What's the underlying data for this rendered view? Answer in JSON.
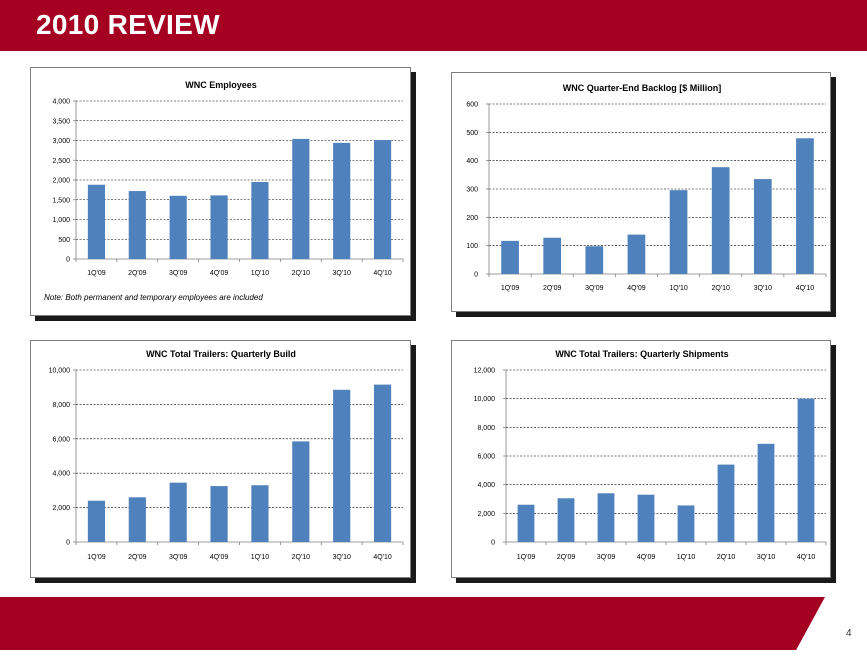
{
  "header": {
    "title": "2010 REVIEW",
    "color": "#a50021"
  },
  "page_number": "4",
  "bar_color": "#4f81bd",
  "chart_data": [
    {
      "type": "bar",
      "title": "WNC Employees",
      "categories": [
        "1Q'09",
        "2Q'09",
        "3Q'09",
        "4Q'09",
        "1Q'10",
        "2Q'10",
        "3Q'10",
        "4Q'10"
      ],
      "values": [
        1880,
        1720,
        1600,
        1610,
        1950,
        3040,
        2940,
        3010
      ],
      "ylim": [
        0,
        4000
      ],
      "yticks": [
        "0",
        "500",
        "1,000",
        "1,500",
        "2,000",
        "2,500",
        "3,000",
        "3,500",
        "4,000"
      ],
      "grid": true,
      "note": "Note:  Both permanent and temporary employees are included"
    },
    {
      "type": "bar",
      "title": "WNC Quarter-End Backlog [$ Million]",
      "categories": [
        "1Q'09",
        "2Q'09",
        "3Q'09",
        "4Q'09",
        "1Q'10",
        "2Q'10",
        "3Q'10",
        "4Q'10"
      ],
      "values": [
        117,
        128,
        98,
        139,
        296,
        377,
        335,
        479
      ],
      "ylim": [
        0,
        600
      ],
      "yticks": [
        "0",
        "100",
        "200",
        "300",
        "400",
        "500",
        "600"
      ],
      "grid": true
    },
    {
      "type": "bar",
      "title": "WNC Total Trailers: Quarterly Build",
      "categories": [
        "1Q'09",
        "2Q'09",
        "3Q'09",
        "4Q'09",
        "1Q'10",
        "2Q'10",
        "3Q'10",
        "4Q'10"
      ],
      "values": [
        2400,
        2600,
        3450,
        3250,
        3300,
        5850,
        8850,
        9150
      ],
      "ylim": [
        0,
        10000
      ],
      "yticks": [
        "0",
        "2,000",
        "4,000",
        "6,000",
        "8,000",
        "10,000"
      ],
      "grid": true
    },
    {
      "type": "bar",
      "title": "WNC Total Trailers: Quarterly Shipments",
      "categories": [
        "1Q'09",
        "2Q'09",
        "3Q'09",
        "4Q'09",
        "1Q'10",
        "2Q'10",
        "3Q'10",
        "4Q'10"
      ],
      "values": [
        2600,
        3050,
        3400,
        3300,
        2550,
        5400,
        6850,
        10000
      ],
      "ylim": [
        0,
        12000
      ],
      "yticks": [
        "0",
        "2,000",
        "4,000",
        "6,000",
        "8,000",
        "10,000",
        "12,000"
      ],
      "grid": true
    }
  ]
}
